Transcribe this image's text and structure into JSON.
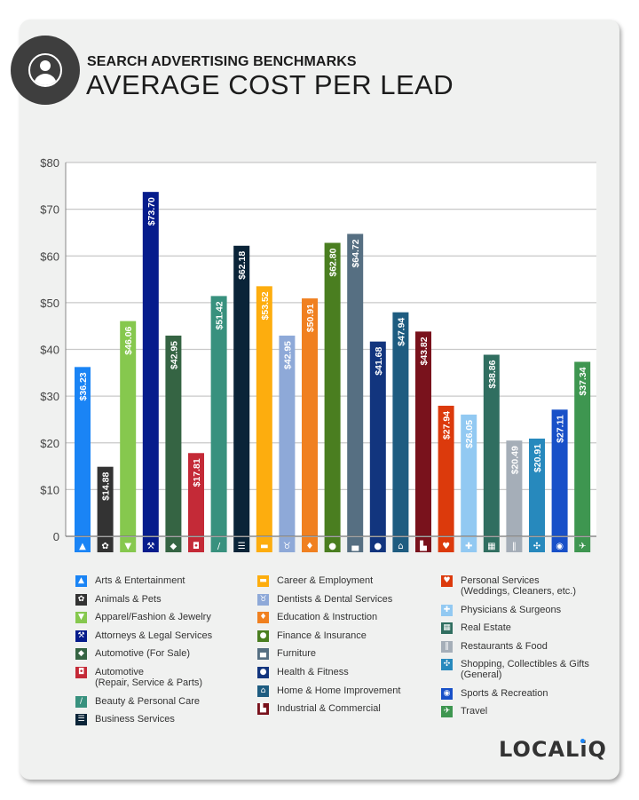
{
  "header": {
    "subtitle": "SEARCH ADVERTISING BENCHMARKS",
    "title": "AVERAGE COST PER LEAD",
    "badge_icon": "dollar-user-icon"
  },
  "logo": "LOCALiQ",
  "chart_data": {
    "type": "bar",
    "title": "AVERAGE COST PER LEAD",
    "ylim": [
      0,
      80
    ],
    "yticks": [
      0,
      10,
      20,
      30,
      40,
      50,
      60,
      70,
      80
    ],
    "ytick_labels": [
      "0",
      "$10",
      "$20",
      "$30",
      "$40",
      "$50",
      "$60",
      "$70",
      "$80"
    ],
    "grid": true,
    "legend_placement": "bottom",
    "categories": [
      {
        "name": "Arts & Entertainment",
        "value": 36.23,
        "label": "$36.23",
        "color": "#1a84f5",
        "icon": "image-icon",
        "glyph": "▲"
      },
      {
        "name": "Animals & Pets",
        "value": 14.88,
        "label": "$14.88",
        "color": "#333333",
        "icon": "paw-icon",
        "glyph": "✿"
      },
      {
        "name": "Apparel/Fashion & Jewelry",
        "value": 46.06,
        "label": "$46.06",
        "color": "#86c84e",
        "icon": "shirt-icon",
        "glyph": "▼"
      },
      {
        "name": "Attorneys & Legal Services",
        "value": 73.7,
        "label": "$73.70",
        "color": "#061c8c",
        "icon": "gavel-icon",
        "glyph": "⚒"
      },
      {
        "name": "Automotive (For Sale)",
        "value": 42.95,
        "label": "$42.95",
        "color": "#356443",
        "icon": "tag-icon",
        "glyph": "◆"
      },
      {
        "name": "Automotive\n(Repair, Service & Parts)",
        "value": 17.81,
        "label": "$17.81",
        "color": "#c42a37",
        "icon": "car-icon",
        "glyph": "◘"
      },
      {
        "name": "Beauty & Personal Care",
        "value": 51.42,
        "label": "$51.42",
        "color": "#38917e",
        "icon": "brush-icon",
        "glyph": "/"
      },
      {
        "name": "Business Services",
        "value": 62.18,
        "label": "$62.18",
        "color": "#0a2438",
        "icon": "newspaper-icon",
        "glyph": "☰"
      },
      {
        "name": "Career & Employment",
        "value": 53.52,
        "label": "$53.52",
        "color": "#fdad0e",
        "icon": "briefcase-icon",
        "glyph": "▬"
      },
      {
        "name": "Dentists & Dental Services",
        "value": 42.95,
        "label": "$42.95",
        "color": "#8ea9d8",
        "icon": "tooth-icon",
        "glyph": "♉"
      },
      {
        "name": "Education & Instruction",
        "value": 50.91,
        "label": "$50.91",
        "color": "#f08020",
        "icon": "graduation-cap-icon",
        "glyph": "♦"
      },
      {
        "name": "Finance & Insurance",
        "value": 62.8,
        "label": "$62.80",
        "color": "#4a7e20",
        "icon": "piggy-bank-icon",
        "glyph": "●"
      },
      {
        "name": "Furniture",
        "value": 64.72,
        "label": "$64.72",
        "color": "#566f82",
        "icon": "armchair-icon",
        "glyph": "▄"
      },
      {
        "name": "Health & Fitness",
        "value": 41.68,
        "label": "$41.68",
        "color": "#12357e",
        "icon": "apple-icon",
        "glyph": "●"
      },
      {
        "name": "Home & Home Improvement",
        "value": 47.94,
        "label": "$47.94",
        "color": "#1e5c80",
        "icon": "house-icon",
        "glyph": "⌂"
      },
      {
        "name": "Industrial & Commercial",
        "value": 43.82,
        "label": "$43.82",
        "color": "#79121c",
        "icon": "factory-icon",
        "glyph": "▙"
      },
      {
        "name": "Personal Services\n(Weddings, Cleaners, etc.)",
        "value": 27.94,
        "label": "$27.94",
        "color": "#dc3a0c",
        "icon": "hand-heart-icon",
        "glyph": "♥"
      },
      {
        "name": "Physicians & Surgeons",
        "value": 26.05,
        "label": "$26.05",
        "color": "#92c9f2",
        "icon": "medical-cross-icon",
        "glyph": "✚"
      },
      {
        "name": "Real Estate",
        "value": 38.86,
        "label": "$38.86",
        "color": "#306e60",
        "icon": "storefront-icon",
        "glyph": "▦"
      },
      {
        "name": "Restaurants & Food",
        "value": 20.49,
        "label": "$20.49",
        "color": "#a5aeb8",
        "icon": "fork-knife-icon",
        "glyph": "‖"
      },
      {
        "name": "Shopping, Collectibles & Gifts\n(General)",
        "value": 20.91,
        "label": "$20.91",
        "color": "#2789bd",
        "icon": "gift-bow-icon",
        "glyph": "✣"
      },
      {
        "name": "Sports & Recreation",
        "value": 27.11,
        "label": "$27.11",
        "color": "#1850c8",
        "icon": "ball-icon",
        "glyph": "◉"
      },
      {
        "name": "Travel",
        "value": 37.34,
        "label": "$37.34",
        "color": "#3e9650",
        "icon": "airplane-icon",
        "glyph": "✈"
      }
    ]
  }
}
